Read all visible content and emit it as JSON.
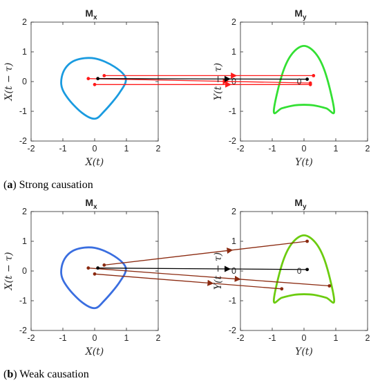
{
  "captions": [
    {
      "letter": "a",
      "text": "Strong causation"
    },
    {
      "letter": "b",
      "text": "Weak causation"
    }
  ],
  "colors": {
    "strong_red": "#ff1a1a",
    "weak_red": "#8b2a10",
    "black": "#000000",
    "mx_strong": "#1a9be0",
    "my_strong": "#33e033",
    "mx_weak": "#3a6ee0",
    "my_weak": "#6ccc10"
  },
  "chart_data": [
    {
      "type": "line",
      "panel": "a",
      "subplots": [
        {
          "title": "M",
          "title_sub": "x",
          "xlabel": "X(t)",
          "ylabel": "X(t − τ)",
          "xlim": [
            -2,
            2
          ],
          "ylim": [
            -2,
            2
          ],
          "xticks": [
            "-2",
            "-1",
            "0",
            "1",
            "2"
          ],
          "yticks": [
            "2",
            "1",
            "0",
            "-1",
            "-2"
          ],
          "series": [
            {
              "shape": "closed curve",
              "points": [
                [
                  -0.95,
                  0.4
                ],
                [
                  -0.6,
                  0.72
                ],
                [
                  0,
                  0.78
                ],
                [
                  0.62,
                  0.5
                ],
                [
                  0.98,
                  0.1
                ],
                [
                  0.78,
                  -0.38
                ],
                [
                  0.3,
                  -1.0
                ],
                [
                  0,
                  -1.25
                ],
                [
                  -0.4,
                  -1.05
                ],
                [
                  -0.85,
                  -0.55
                ],
                [
                  -1.05,
                  -0.1
                ]
              ]
            }
          ],
          "points": [
            [
              -0.2,
              0.1
            ],
            [
              0.3,
              0.2
            ],
            [
              0.1,
              0.1
            ],
            [
              0,
              -0.1
            ]
          ]
        },
        {
          "title": "M",
          "title_sub": "y",
          "xlabel": "Y(t)",
          "ylabel": "Y(t − τ)",
          "xlim": [
            -2,
            2
          ],
          "ylim": [
            -2,
            2
          ],
          "xticks": [
            "-2",
            "-1",
            "0",
            "1",
            "2"
          ],
          "yticks": [
            "2",
            "1",
            "0",
            "-1",
            "-2"
          ],
          "series": [
            {
              "shape": "closed curve",
              "points": [
                [
                  0,
                  1.2
                ],
                [
                  0.4,
                  0.9
                ],
                [
                  0.7,
                  0.2
                ],
                [
                  0.95,
                  -1.0
                ],
                [
                  0.7,
                  -0.9
                ],
                [
                  0.3,
                  -0.8
                ],
                [
                  0,
                  -0.78
                ],
                [
                  -0.3,
                  -0.8
                ],
                [
                  -0.7,
                  -0.9
                ],
                [
                  -0.95,
                  -1.0
                ],
                [
                  -0.7,
                  0.2
                ],
                [
                  -0.4,
                  0.9
                ]
              ]
            }
          ],
          "points": [
            [
              0.3,
              0.2
            ],
            [
              0.1,
              0.08
            ],
            [
              0.2,
              -0.05
            ],
            [
              0.2,
              -0.1
            ]
          ],
          "annotations": [
            "0"
          ]
        }
      ],
      "mappings": [
        {
          "from": [
            0.3,
            0.2
          ],
          "to": [
            0.3,
            0.2
          ],
          "series": "red"
        },
        {
          "from": [
            -0.2,
            0.1
          ],
          "to": [
            0.2,
            -0.05
          ],
          "series": "red"
        },
        {
          "from": [
            0.1,
            0.1
          ],
          "to": [
            0.1,
            0.08
          ],
          "series": "black"
        },
        {
          "from": [
            0,
            -0.1
          ],
          "to": [
            0.2,
            -0.1
          ],
          "series": "red"
        }
      ]
    },
    {
      "type": "line",
      "panel": "b",
      "subplots": [
        {
          "title": "M",
          "title_sub": "x",
          "xlabel": "X(t)",
          "ylabel": "X(t − τ)",
          "xlim": [
            -2,
            2
          ],
          "ylim": [
            -2,
            2
          ],
          "xticks": [
            "-2",
            "-1",
            "0",
            "1",
            "2"
          ],
          "yticks": [
            "2",
            "1",
            "0",
            "-1",
            "-2"
          ],
          "series": [
            {
              "shape": "closed curve",
              "points": [
                [
                  -0.95,
                  0.4
                ],
                [
                  -0.6,
                  0.72
                ],
                [
                  0,
                  0.78
                ],
                [
                  0.62,
                  0.5
                ],
                [
                  0.98,
                  0.1
                ],
                [
                  0.78,
                  -0.38
                ],
                [
                  0.3,
                  -1.0
                ],
                [
                  0,
                  -1.25
                ],
                [
                  -0.4,
                  -1.05
                ],
                [
                  -0.85,
                  -0.55
                ],
                [
                  -1.05,
                  -0.1
                ]
              ]
            }
          ],
          "points": [
            [
              -0.2,
              0.1
            ],
            [
              0.3,
              0.2
            ],
            [
              0.1,
              0.1
            ],
            [
              0,
              -0.1
            ]
          ]
        },
        {
          "title": "M",
          "title_sub": "y",
          "xlabel": "Y(t)",
          "ylabel": "Y(t − τ)",
          "xlim": [
            -2,
            2
          ],
          "ylim": [
            -2,
            2
          ],
          "xticks": [
            "-2",
            "-1",
            "0",
            "1",
            "2"
          ],
          "yticks": [
            "2",
            "1",
            "0",
            "-1",
            "-2"
          ],
          "series": [
            {
              "shape": "closed curve",
              "points": [
                [
                  0,
                  1.2
                ],
                [
                  0.4,
                  0.9
                ],
                [
                  0.7,
                  0.2
                ],
                [
                  0.95,
                  -1.0
                ],
                [
                  0.7,
                  -0.9
                ],
                [
                  0.3,
                  -0.8
                ],
                [
                  0,
                  -0.78
                ],
                [
                  -0.3,
                  -0.8
                ],
                [
                  -0.7,
                  -0.9
                ],
                [
                  -0.95,
                  -1.0
                ],
                [
                  -0.7,
                  0.2
                ],
                [
                  -0.4,
                  0.9
                ]
              ]
            }
          ],
          "points": [
            [
              0.1,
              1.0
            ],
            [
              0.8,
              -0.5
            ],
            [
              -0.7,
              -0.6
            ],
            [
              0.1,
              0.05
            ]
          ],
          "annotations": [
            "0"
          ]
        }
      ],
      "mappings": [
        {
          "from": [
            0.3,
            0.2
          ],
          "to": [
            0.1,
            1.0
          ],
          "series": "red"
        },
        {
          "from": [
            -0.2,
            0.1
          ],
          "to": [
            0.8,
            -0.5
          ],
          "series": "red"
        },
        {
          "from": [
            0.1,
            0.1
          ],
          "to": [
            0.1,
            0.05
          ],
          "series": "black"
        },
        {
          "from": [
            0,
            -0.1
          ],
          "to": [
            -0.7,
            -0.6
          ],
          "series": "red"
        }
      ]
    }
  ]
}
